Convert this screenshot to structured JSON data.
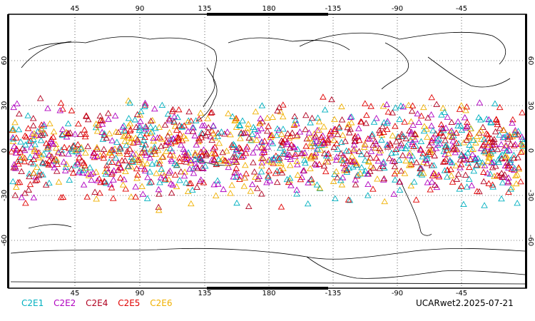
{
  "map": {
    "projection": "cylindrical, centered on 180",
    "top_lon_labels": [
      "45",
      "90",
      "135",
      "180",
      "-135",
      "-90",
      "-45"
    ],
    "bottom_lon_labels": [
      "45",
      "90",
      "135",
      "180",
      "-135",
      "-90",
      "-45"
    ],
    "lat_labels": [
      "60",
      "30",
      "0",
      "-30",
      "-60"
    ],
    "grid": "dotted",
    "observations_marker": "open triangle"
  },
  "legend": {
    "items": [
      {
        "label": "C2E1",
        "color": "#00b0c0"
      },
      {
        "label": "C2E2",
        "color": "#b000c0"
      },
      {
        "label": "C2E4",
        "color": "#b00020"
      },
      {
        "label": "C2E5",
        "color": "#e00000"
      },
      {
        "label": "C2E6",
        "color": "#f0b000"
      }
    ]
  },
  "stamp": "UCARwet2.2025-07-21"
}
